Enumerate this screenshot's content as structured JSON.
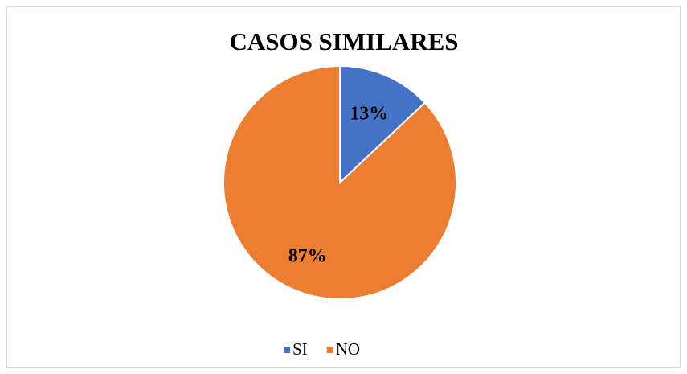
{
  "chart_data": {
    "type": "pie",
    "title": "CASOS SIMILARES",
    "categories": [
      "SI",
      "NO"
    ],
    "values": [
      13,
      87
    ],
    "value_labels": [
      "13%",
      "87%"
    ],
    "colors": [
      "#4472c4",
      "#ed7d31"
    ],
    "legend": "bottom"
  }
}
